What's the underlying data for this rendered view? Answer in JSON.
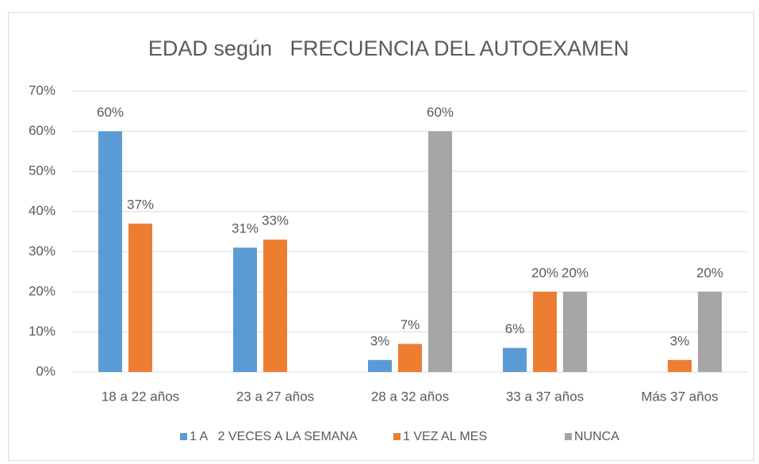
{
  "chart_data": {
    "type": "bar",
    "title": "EDAD según   FRECUENCIA DEL AUTOEXAMEN",
    "categories": [
      "18 a 22 años",
      "23 a 27 años",
      "28 a 32 años",
      "33 a 37 años",
      "Más 37 años"
    ],
    "series": [
      {
        "name": "1 A   2 VECES A LA SEMANA",
        "color": "#5b9bd5",
        "values": [
          60,
          31,
          3,
          6,
          null
        ],
        "value_labels": [
          "60%",
          "31%",
          "3%",
          "6%",
          null
        ]
      },
      {
        "name": "1 VEZ AL MES",
        "color": "#ed7d31",
        "values": [
          37,
          33,
          7,
          20,
          3
        ],
        "value_labels": [
          "37%",
          "33%",
          "7%",
          "20%",
          "3%"
        ]
      },
      {
        "name": "NUNCA",
        "color": "#a5a5a5",
        "values": [
          null,
          null,
          60,
          20,
          20
        ],
        "value_labels": [
          null,
          null,
          "60%",
          "20%",
          "20%"
        ]
      }
    ],
    "ylim": [
      0,
      70
    ],
    "yticks": [
      {
        "value": 0,
        "label": "0%"
      },
      {
        "value": 10,
        "label": "10%"
      },
      {
        "value": 20,
        "label": "20%"
      },
      {
        "value": 30,
        "label": "30%"
      },
      {
        "value": 40,
        "label": "40%"
      },
      {
        "value": 50,
        "label": "50%"
      },
      {
        "value": 60,
        "label": "60%"
      },
      {
        "value": 70,
        "label": "70%"
      }
    ],
    "grid": true,
    "legend": "bottom"
  }
}
